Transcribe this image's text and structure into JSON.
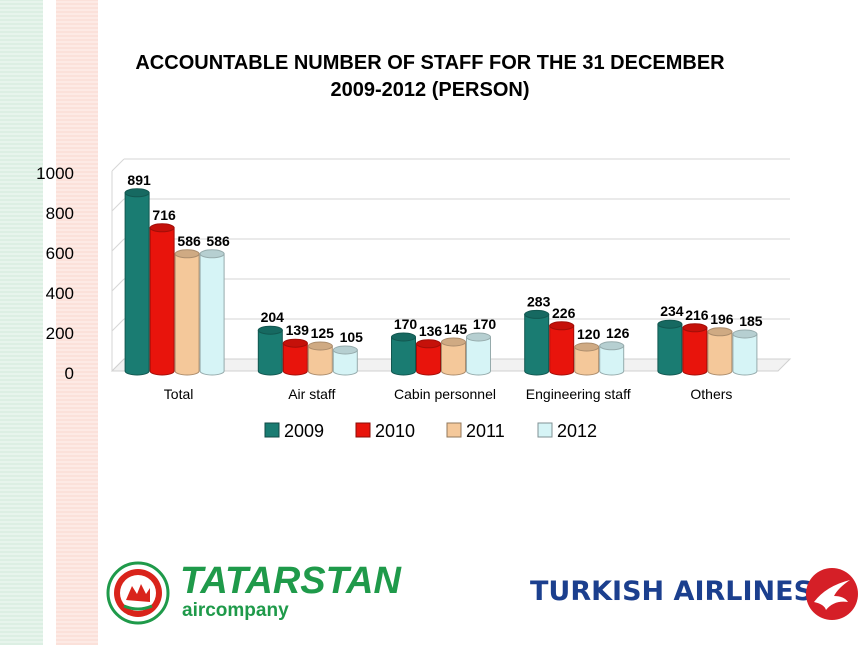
{
  "title": {
    "line1": "ACCOUNTABLE NUMBER OF STAFF FOR THE 31 DECEMBER",
    "line2": "2009-2012 (PERSON)"
  },
  "chart_data": {
    "type": "bar",
    "categories": [
      "Total",
      "Air staff",
      "Cabin personnel",
      "Engineering staff",
      "Others"
    ],
    "series": [
      {
        "name": "2009",
        "values": [
          891,
          204,
          170,
          283,
          234
        ],
        "color": "#1a7c72"
      },
      {
        "name": "2010",
        "values": [
          716,
          139,
          136,
          226,
          216
        ],
        "color": "#e8140c"
      },
      {
        "name": "2011",
        "values": [
          586,
          125,
          145,
          120,
          196
        ],
        "color": "#f4c89a"
      },
      {
        "name": "2012",
        "values": [
          586,
          105,
          170,
          126,
          185
        ],
        "color": "#d6f4f6"
      }
    ],
    "ylim": [
      0,
      1000
    ],
    "yticks": [
      "0",
      "200",
      "400",
      "600",
      "800",
      "1000"
    ],
    "grid": true,
    "legend": "bottom"
  },
  "logos": {
    "tatarstan_name": "TATARSTAN",
    "tatarstan_sub": "aircompany",
    "turkish": "TURKISH AIRLINES"
  }
}
